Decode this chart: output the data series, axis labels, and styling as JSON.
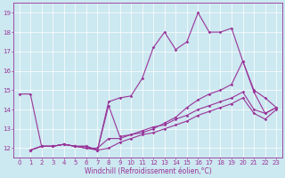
{
  "xlabel": "Windchill (Refroidissement éolien,°C)",
  "bg_color": "#cce8f0",
  "line_color": "#993399",
  "xlim": [
    -0.5,
    23.5
  ],
  "ylim": [
    11.5,
    19.5
  ],
  "yticks": [
    12,
    13,
    14,
    15,
    16,
    17,
    18,
    19
  ],
  "xticks": [
    0,
    1,
    2,
    3,
    4,
    5,
    6,
    7,
    8,
    9,
    10,
    11,
    12,
    13,
    14,
    15,
    16,
    17,
    18,
    19,
    20,
    21,
    22,
    23
  ],
  "line1_x": [
    0,
    1,
    2,
    3,
    4,
    5,
    6,
    7,
    8,
    9,
    10,
    11,
    12,
    13,
    14,
    15,
    16,
    17,
    18,
    19,
    20,
    21,
    22,
    23
  ],
  "line1_y": [
    14.8,
    14.8,
    12.1,
    12.1,
    12.2,
    12.1,
    12.1,
    11.9,
    14.4,
    14.6,
    14.7,
    15.6,
    17.2,
    18.0,
    17.1,
    17.5,
    19.0,
    18.0,
    18.0,
    18.2,
    16.5,
    15.0,
    14.6,
    14.1
  ],
  "line2_x": [
    1,
    2,
    3,
    4,
    5,
    6,
    7,
    8,
    9,
    10,
    11,
    12,
    13,
    14,
    15,
    16,
    17,
    18,
    19,
    20,
    21,
    22,
    23
  ],
  "line2_y": [
    11.9,
    12.1,
    12.1,
    12.2,
    12.1,
    12.1,
    11.9,
    14.2,
    12.6,
    12.7,
    12.8,
    13.0,
    13.3,
    13.6,
    14.1,
    14.5,
    14.8,
    15.0,
    15.3,
    16.5,
    14.9,
    13.8,
    14.1
  ],
  "line3_x": [
    1,
    2,
    3,
    4,
    5,
    6,
    7,
    8,
    9,
    10,
    11,
    12,
    13,
    14,
    15,
    16,
    17,
    18,
    19,
    20,
    21,
    22,
    23
  ],
  "line3_y": [
    11.9,
    12.1,
    12.1,
    12.2,
    12.1,
    12.0,
    12.0,
    12.5,
    12.5,
    12.7,
    12.9,
    13.1,
    13.2,
    13.5,
    13.7,
    14.0,
    14.2,
    14.4,
    14.6,
    14.9,
    14.0,
    13.8,
    14.1
  ],
  "line4_x": [
    1,
    2,
    3,
    4,
    5,
    6,
    7,
    8,
    9,
    10,
    11,
    12,
    13,
    14,
    15,
    16,
    17,
    18,
    19,
    20,
    21,
    22,
    23
  ],
  "line4_y": [
    11.9,
    12.1,
    12.1,
    12.2,
    12.1,
    12.0,
    11.9,
    12.0,
    12.3,
    12.5,
    12.7,
    12.8,
    13.0,
    13.2,
    13.4,
    13.7,
    13.9,
    14.1,
    14.3,
    14.6,
    13.8,
    13.5,
    14.0
  ],
  "marker_size": 1.8,
  "line_width": 0.8,
  "tick_labelsize": 5.0,
  "xlabel_fontsize": 5.5
}
